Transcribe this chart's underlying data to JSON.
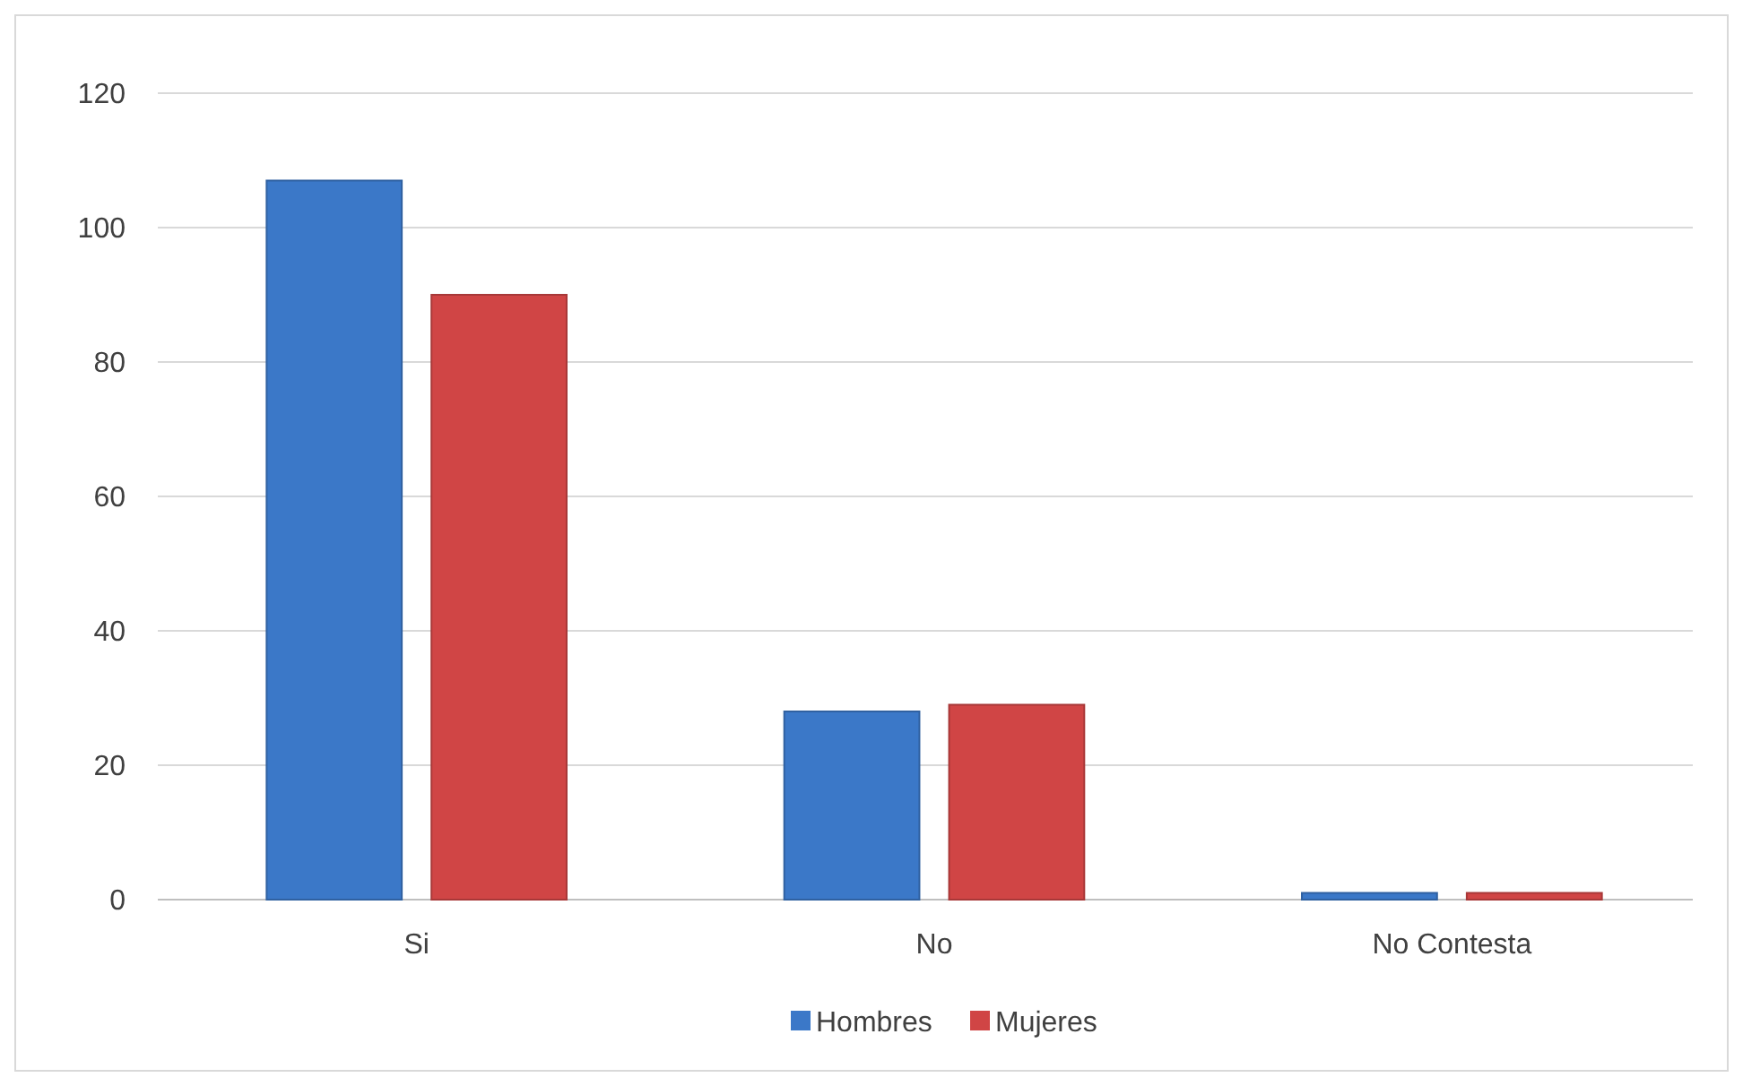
{
  "chart_data": {
    "type": "bar",
    "categories": [
      "Si",
      "No",
      "No Contesta"
    ],
    "series": [
      {
        "name": "Hombres",
        "color": "#3b78c8",
        "values": [
          107,
          28,
          1
        ]
      },
      {
        "name": "Mujeres",
        "color": "#d04545",
        "values": [
          90,
          29,
          1
        ]
      }
    ],
    "ylim": [
      0,
      120
    ],
    "yticks": [
      0,
      20,
      40,
      60,
      80,
      100,
      120
    ],
    "grid": "y",
    "legend": "bottom"
  }
}
